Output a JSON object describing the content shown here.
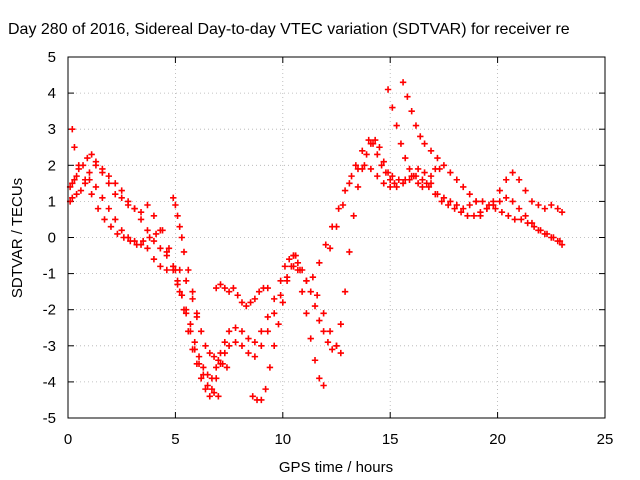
{
  "chart_data": {
    "type": "scatter",
    "title": "Day 280 of 2016, Sidereal Day-to-day VTEC variation (SDTVAR) for receiver re",
    "xlabel": "GPS time / hours",
    "ylabel": "SDTVAR / TECUs",
    "xlim": [
      0,
      25
    ],
    "ylim": [
      -5,
      5
    ],
    "xticks": [
      "0",
      "5",
      "10",
      "15",
      "20",
      "25"
    ],
    "yticks": [
      "-5",
      "-4",
      "-3",
      "-2",
      "-1",
      "0",
      "1",
      "2",
      "3",
      "4",
      "5"
    ],
    "grid": true,
    "marker": "+",
    "marker_color": "#ff0000",
    "series": [
      {
        "x": [
          0.1,
          0.2,
          0.3,
          0.4,
          0.5,
          0.7,
          0.9,
          1.1,
          1.3,
          1.6,
          1.9,
          2.2,
          2.5,
          2.8,
          3.1,
          3.4,
          3.7,
          4.0,
          4.3,
          4.6,
          4.9,
          5.1,
          5.3,
          5.5,
          5.7,
          5.9,
          6.1,
          6.3,
          6.5,
          6.7,
          6.9,
          7.1,
          7.3,
          7.5,
          7.8,
          8.1,
          8.4,
          8.7,
          9.0,
          9.3,
          9.6,
          9.9,
          10.1,
          10.3,
          10.5,
          10.7,
          10.9,
          11.1,
          11.3,
          11.5,
          11.7,
          11.9,
          12.1,
          12.3,
          12.5,
          12.7,
          12.9,
          13.1,
          13.3,
          13.5,
          13.7,
          13.9,
          14.1,
          14.3,
          14.5,
          14.7,
          14.9,
          15.1,
          15.4,
          15.7,
          16.0,
          16.3,
          16.6,
          16.9,
          17.2,
          17.5,
          17.8,
          18.1,
          18.4,
          18.7,
          19.0,
          19.3,
          19.6,
          19.9,
          20.2,
          20.5,
          20.8,
          21.1,
          21.4,
          21.7,
          22.0,
          22.3,
          22.6,
          22.9
        ],
        "y": [
          1.4,
          1.5,
          1.6,
          1.7,
          1.9,
          2.0,
          2.2,
          2.3,
          2.1,
          1.8,
          1.5,
          1.2,
          1.1,
          0.9,
          0.8,
          0.7,
          0.9,
          0.6,
          0.2,
          -0.4,
          -0.9,
          -1.3,
          -1.6,
          -2.0,
          -2.4,
          -2.9,
          -3.3,
          -3.6,
          -3.8,
          -3.9,
          -3.6,
          -3.2,
          -2.9,
          -2.6,
          -2.5,
          -2.6,
          -2.8,
          -2.9,
          -2.6,
          -2.2,
          -1.7,
          -1.2,
          -0.8,
          -0.6,
          -0.5,
          -0.7,
          -0.9,
          -1.2,
          -1.5,
          -1.9,
          -2.3,
          -2.6,
          -2.9,
          -3.1,
          -3.0,
          -2.4,
          -1.5,
          -0.4,
          0.6,
          1.4,
          1.9,
          2.3,
          2.6,
          2.7,
          2.5,
          2.1,
          1.8,
          1.7,
          1.6,
          1.6,
          1.7,
          1.9,
          1.8,
          1.5,
          1.2,
          1.1,
          1.0,
          0.9,
          0.8,
          0.9,
          1.0,
          1.0,
          0.9,
          0.8,
          0.7,
          0.6,
          0.5,
          0.5,
          0.4,
          0.3,
          0.2,
          0.1,
          0.0,
          -0.1
        ]
      },
      {
        "x": [
          0.1,
          0.2,
          0.4,
          0.6,
          0.8,
          1.0,
          1.3,
          1.6,
          1.9,
          2.2,
          2.5,
          2.8,
          3.1,
          3.4,
          3.7,
          4.0,
          4.3,
          4.6,
          4.9,
          5.1,
          5.3,
          5.5,
          5.7,
          5.9,
          6.1,
          6.3,
          6.5,
          6.7,
          6.9,
          7.1,
          7.3,
          7.5,
          7.8,
          8.1,
          8.4,
          8.7,
          9.0,
          9.3,
          9.6,
          9.9,
          10.2,
          10.5,
          10.8,
          11.1,
          11.4,
          11.7,
          12.0,
          12.3,
          12.6,
          12.9,
          13.2,
          13.5,
          13.8,
          14.1,
          14.4,
          14.7,
          15.0,
          15.3,
          15.6,
          15.9,
          16.2,
          16.5,
          16.8,
          17.1,
          17.4,
          17.7,
          18.0,
          18.3,
          18.6,
          18.9,
          19.2,
          19.5,
          19.8,
          20.1,
          20.4,
          20.7,
          21.0,
          21.3,
          21.6,
          21.9,
          22.2,
          22.5,
          22.8,
          23.0
        ],
        "y": [
          1.0,
          1.1,
          1.2,
          1.3,
          1.5,
          1.8,
          2.0,
          1.9,
          1.7,
          1.5,
          1.3,
          1.0,
          0.8,
          0.5,
          0.2,
          -0.1,
          -0.3,
          -0.5,
          -0.8,
          -1.2,
          -1.6,
          -2.1,
          -2.6,
          -3.1,
          -3.5,
          -3.8,
          -4.1,
          -4.2,
          -3.9,
          -3.5,
          -3.2,
          -3.0,
          -2.9,
          -3.0,
          -3.2,
          -3.3,
          -3.0,
          -2.6,
          -2.1,
          -1.6,
          -1.1,
          -0.8,
          -0.9,
          -1.2,
          -1.1,
          -0.7,
          -0.2,
          0.3,
          0.8,
          1.3,
          1.7,
          1.9,
          2.0,
          1.9,
          1.7,
          1.5,
          1.4,
          1.4,
          1.5,
          1.6,
          1.7,
          1.6,
          1.4,
          1.2,
          1.0,
          0.9,
          0.8,
          0.7,
          0.6,
          0.6,
          0.7,
          0.8,
          0.9,
          1.0,
          1.1,
          1.0,
          0.8,
          0.6,
          0.4,
          0.2,
          0.1,
          0.0,
          -0.1,
          -0.2
        ]
      },
      {
        "x": [
          0.2,
          0.3,
          0.5,
          0.8,
          1.1,
          1.4,
          1.7,
          2.0,
          2.3,
          2.6,
          2.9,
          3.2,
          3.5,
          3.8,
          4.1,
          4.4,
          4.7,
          5.0,
          5.2,
          5.4,
          5.6,
          5.8,
          6.0,
          6.2,
          6.4,
          6.6,
          6.8,
          7.0
        ],
        "y": [
          3.0,
          2.5,
          2.0,
          1.6,
          1.2,
          0.8,
          0.5,
          0.3,
          0.1,
          0.0,
          -0.1,
          -0.2,
          -0.1,
          0.0,
          0.1,
          0.2,
          -0.3,
          -0.9,
          -1.5,
          -2.0,
          -2.6,
          -3.1,
          -3.5,
          -3.9,
          -4.2,
          -4.4,
          -4.3,
          -4.4
        ]
      },
      {
        "x": [
          1.0,
          1.3,
          1.6,
          1.9,
          2.2,
          2.5,
          2.8,
          3.1,
          3.4,
          3.7,
          4.0,
          4.3,
          4.6,
          4.9,
          5.2,
          5.5,
          5.8,
          6.0
        ],
        "y": [
          1.6,
          1.4,
          1.1,
          0.8,
          0.5,
          0.2,
          0.0,
          -0.1,
          -0.2,
          -0.3,
          -0.6,
          -0.8,
          -0.9,
          -0.8,
          -0.9,
          -1.2,
          -1.7,
          -2.2
        ]
      },
      {
        "x": [
          4.9,
          5.0,
          5.1,
          5.2,
          5.3,
          5.4,
          5.6,
          5.8,
          6.0,
          6.2,
          6.4,
          6.6,
          6.8,
          7.0,
          7.2,
          7.4
        ],
        "y": [
          1.1,
          0.9,
          0.6,
          0.3,
          0.0,
          -0.4,
          -0.9,
          -1.5,
          -2.1,
          -2.6,
          -3.0,
          -3.2,
          -3.3,
          -3.4,
          -3.5,
          -3.6
        ]
      },
      {
        "x": [
          6.9,
          7.1,
          7.3,
          7.5,
          7.7,
          7.9,
          8.1,
          8.3,
          8.5,
          8.7,
          8.9,
          9.1,
          9.3
        ],
        "y": [
          -1.4,
          -1.3,
          -1.4,
          -1.5,
          -1.4,
          -1.6,
          -1.8,
          -1.9,
          -1.8,
          -1.7,
          -1.5,
          -1.4,
          -1.4
        ]
      },
      {
        "x": [
          8.6,
          8.8,
          9.0,
          9.2,
          9.4,
          9.6,
          9.8,
          10.0,
          10.2,
          10.4,
          10.6
        ],
        "y": [
          -4.4,
          -4.5,
          -4.5,
          -4.2,
          -3.6,
          -3.0,
          -2.4,
          -1.8,
          -1.2,
          -0.8,
          -0.5
        ]
      },
      {
        "x": [
          10.5,
          10.7,
          10.9,
          11.1,
          11.3,
          11.5,
          11.7,
          11.9
        ],
        "y": [
          -0.5,
          -0.9,
          -1.5,
          -2.1,
          -2.8,
          -3.4,
          -3.9,
          -4.1
        ]
      },
      {
        "x": [
          11.6,
          11.9,
          12.2,
          12.5,
          12.7
        ],
        "y": [
          -1.6,
          -2.1,
          -2.6,
          -3.0,
          -3.2
        ]
      },
      {
        "x": [
          12.2,
          12.5,
          12.8,
          13.1,
          13.4,
          13.7,
          14.0,
          14.2,
          14.4,
          14.6,
          14.8,
          15.0,
          15.2
        ],
        "y": [
          -0.3,
          0.3,
          0.9,
          1.5,
          2.0,
          2.4,
          2.7,
          2.6,
          2.3,
          2.0,
          1.8,
          1.6,
          1.5
        ]
      },
      {
        "x": [
          14.9,
          15.1,
          15.3,
          15.5,
          15.7,
          15.9,
          16.1,
          16.3,
          16.5,
          16.7,
          16.9,
          17.1,
          17.3
        ],
        "y": [
          4.1,
          3.6,
          3.1,
          2.6,
          2.2,
          1.9,
          1.7,
          1.5,
          1.4,
          1.5,
          1.7,
          1.9,
          1.9
        ]
      },
      {
        "x": [
          15.6,
          15.8,
          16.0,
          16.2,
          16.4,
          16.6,
          16.9,
          17.2,
          17.5,
          17.8,
          18.1,
          18.4,
          18.7,
          19.0
        ],
        "y": [
          4.3,
          3.9,
          3.5,
          3.1,
          2.8,
          2.6,
          2.4,
          2.2,
          2.0,
          1.8,
          1.6,
          1.4,
          1.2,
          1.0
        ]
      },
      {
        "x": [
          19.2,
          19.5,
          19.8,
          20.1,
          20.4,
          20.7,
          21.0,
          21.3,
          21.6,
          21.9,
          22.2,
          22.5,
          22.8,
          23.0
        ],
        "y": [
          0.6,
          0.8,
          1.0,
          1.3,
          1.6,
          1.8,
          1.6,
          1.3,
          1.0,
          0.9,
          0.8,
          0.9,
          0.8,
          0.7
        ]
      }
    ]
  }
}
